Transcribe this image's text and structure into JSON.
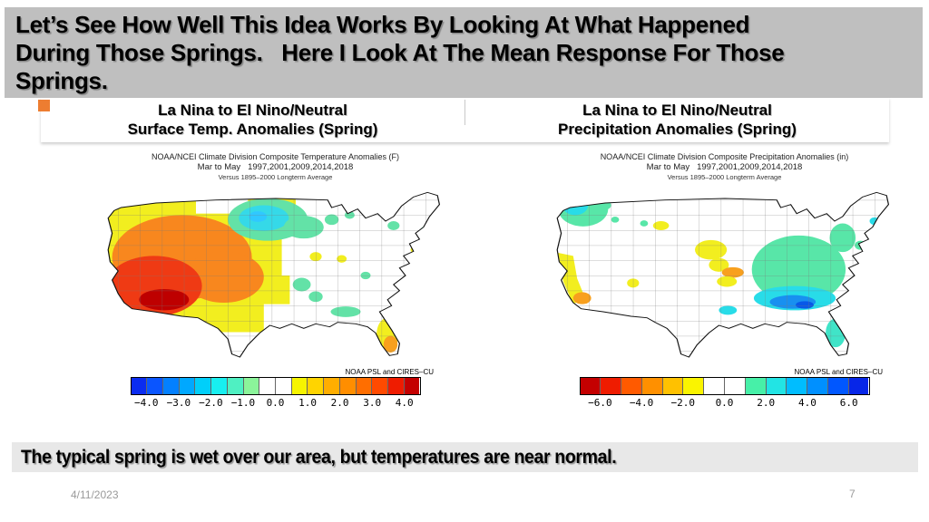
{
  "slide": {
    "title_lines": [
      "Let’s See How Well This Idea Works By Looking At What Happened",
      "During Those Springs.   Here I Look At The Mean Response For Those",
      "Springs."
    ],
    "bottom_note": "The typical spring is wet over our area, but temperatures are near normal.",
    "footer_date": "4/11/2023",
    "page_number": "7",
    "colors": {
      "title_bar_bg": "#BFBFBF",
      "bullet_orange": "#ED7D31",
      "note_strip_bg": "#E8E8E8",
      "footer_text": "#9A9A9A"
    }
  },
  "panels": [
    {
      "id": "surface-temp",
      "header_line1": "La Nina to El Nino/Neutral",
      "header_line2": "Surface Temp. Anomalies (Spring)",
      "map_title_line1": "NOAA/NCEI Climate Division Composite Temperature Anomalies (F)",
      "map_title_line2": "Mar to May   1997,2001,2009,2014,2018",
      "map_title_line3": "Versus 1895–2000 Longterm Average",
      "credit": "NOAA PSL and CIRES–CU",
      "colorbar": {
        "units": "degrees F",
        "ticks": [
          "−4.0",
          "−3.0",
          "−2.0",
          "−1.0",
          "0.0",
          "1.0",
          "2.0",
          "3.0",
          "4.0"
        ],
        "colors": [
          "#0B2CF0",
          "#0A55FF",
          "#0380FF",
          "#00A8FF",
          "#00CFFA",
          "#18EFF0",
          "#4FF0C2",
          "#8BF49A",
          "#FFFFFF",
          "#FFFFFF",
          "#F6F400",
          "#FFD400",
          "#FFAE00",
          "#FF8E00",
          "#FF6E00",
          "#FF4A00",
          "#EF1C00",
          "#C40000"
        ]
      }
    },
    {
      "id": "precipitation",
      "header_line1": "La Nina to El Nino/Neutral",
      "header_line2": "Precipitation Anomalies (Spring)",
      "map_title_line1": "NOAA/NCEI Climate Division Composite Precipitation Anomalies (in)",
      "map_title_line2": "Mar to May   1997,2001,2009,2014,2018",
      "map_title_line3": "Versus 1895–2000 Longterm Average",
      "credit": "NOAA PSL and CIRES–CU",
      "colorbar": {
        "units": "inches",
        "ticks": [
          "−6.0",
          "−4.0",
          "−2.0",
          "0.0",
          "2.0",
          "4.0",
          "6.0"
        ],
        "colors": [
          "#C40000",
          "#EF1C00",
          "#FF5A00",
          "#FF9000",
          "#FFC100",
          "#FAF400",
          "#FFFFFF",
          "#FFFFFF",
          "#47F0A8",
          "#22E4E4",
          "#00BDFF",
          "#0090FF",
          "#0057FF",
          "#0726E8"
        ]
      }
    }
  ]
}
